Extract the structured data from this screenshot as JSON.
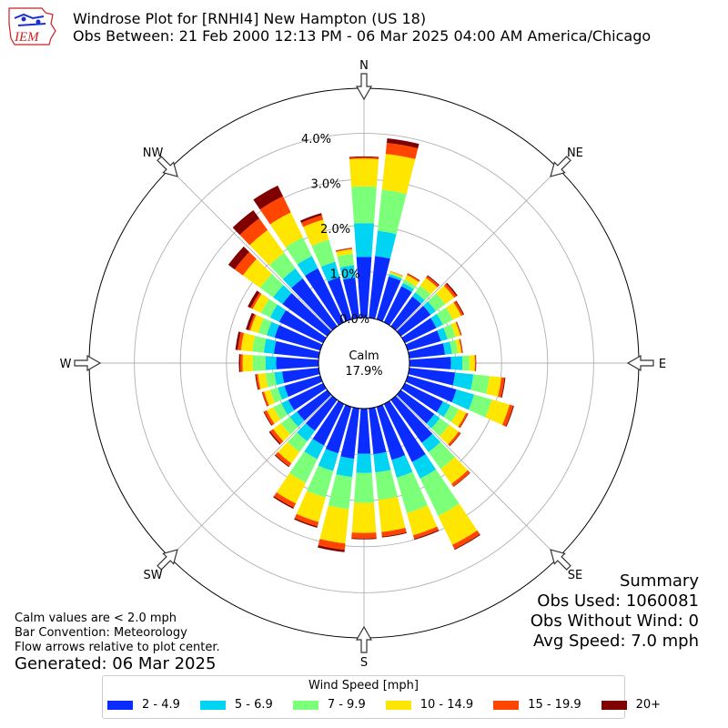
{
  "header": {
    "logo_text": "IEM",
    "title_line1": "Windrose Plot for [RNHI4] New Hampton (US 18)",
    "title_line2": "Obs Between: 21 Feb 2000 12:13 PM - 06 Mar 2025 04:00 AM America/Chicago"
  },
  "chart_data": {
    "type": "windrose",
    "directions_deg": [
      0,
      10,
      20,
      30,
      40,
      50,
      60,
      70,
      80,
      90,
      100,
      110,
      120,
      130,
      140,
      150,
      160,
      170,
      180,
      190,
      200,
      210,
      220,
      230,
      240,
      250,
      260,
      270,
      280,
      290,
      300,
      310,
      320,
      330,
      340,
      350
    ],
    "bins": [
      "2 - 4.9",
      "5 - 6.9",
      "7 - 9.9",
      "10 - 14.9",
      "15 - 19.9",
      "20+"
    ],
    "bin_colors": [
      "#0a2cff",
      "#00d4f2",
      "#7cff79",
      "#ffe600",
      "#ff4500",
      "#800000"
    ],
    "cumulative_percent": [
      [
        1.32,
        2.05,
        2.85,
        3.45,
        3.48,
        3.5
      ],
      [
        1.35,
        1.9,
        2.8,
        3.58,
        3.82,
        3.92
      ],
      [
        0.97,
        1.02,
        1.05,
        1.08,
        1.09,
        1.09
      ],
      [
        0.87,
        0.95,
        1.03,
        1.14,
        1.17,
        1.18
      ],
      [
        0.8,
        0.91,
        1.09,
        1.3,
        1.35,
        1.37
      ],
      [
        0.8,
        0.94,
        1.19,
        1.43,
        1.49,
        1.52
      ],
      [
        0.76,
        0.92,
        1.16,
        1.36,
        1.41,
        1.43
      ],
      [
        0.75,
        0.9,
        1.08,
        1.19,
        1.21,
        1.22
      ],
      [
        0.78,
        0.93,
        1.06,
        1.14,
        1.16,
        1.17
      ],
      [
        0.9,
        1.15,
        1.3,
        1.42,
        1.44,
        1.45
      ],
      [
        1.0,
        1.4,
        1.75,
        2.01,
        2.08,
        2.1
      ],
      [
        1.1,
        1.5,
        1.9,
        2.3,
        2.38,
        2.4
      ],
      [
        0.92,
        1.1,
        1.3,
        1.48,
        1.52,
        1.53
      ],
      [
        0.9,
        1.05,
        1.3,
        1.55,
        1.6,
        1.61
      ],
      [
        1.15,
        1.4,
        1.85,
        2.25,
        2.32,
        2.33
      ],
      [
        1.4,
        1.8,
        2.7,
        3.4,
        3.5,
        3.52
      ],
      [
        1.2,
        1.6,
        2.4,
        2.9,
        2.98,
        3.0
      ],
      [
        1.0,
        1.4,
        2.0,
        2.7,
        2.8,
        2.82
      ],
      [
        0.98,
        1.4,
        2.05,
        2.7,
        2.82,
        2.84
      ],
      [
        1.1,
        1.5,
        2.2,
        2.95,
        3.09,
        3.14
      ],
      [
        1.05,
        1.45,
        2.05,
        2.6,
        2.7,
        2.73
      ],
      [
        1.0,
        1.33,
        1.9,
        2.4,
        2.5,
        2.53
      ],
      [
        0.83,
        1.11,
        1.4,
        1.7,
        1.78,
        1.8
      ],
      [
        0.81,
        1.0,
        1.24,
        1.45,
        1.53,
        1.56
      ],
      [
        0.84,
        1.01,
        1.2,
        1.36,
        1.42,
        1.44
      ],
      [
        0.81,
        0.96,
        1.13,
        1.27,
        1.31,
        1.32
      ],
      [
        0.8,
        0.97,
        1.16,
        1.33,
        1.37,
        1.39
      ],
      [
        0.92,
        1.15,
        1.43,
        1.65,
        1.7,
        1.73
      ],
      [
        0.98,
        1.2,
        1.45,
        1.7,
        1.77,
        1.82
      ],
      [
        1.03,
        1.21,
        1.4,
        1.58,
        1.62,
        1.68
      ],
      [
        1.06,
        1.28,
        1.5,
        1.7,
        1.75,
        1.82
      ],
      [
        1.2,
        1.45,
        1.8,
        2.26,
        2.48,
        2.65
      ],
      [
        1.28,
        1.55,
        1.97,
        2.58,
        2.89,
        3.11
      ],
      [
        1.3,
        1.6,
        2.05,
        2.65,
        3.04,
        3.3
      ],
      [
        0.95,
        1.3,
        1.8,
        2.25,
        2.35,
        2.4
      ],
      [
        0.88,
        1.15,
        1.4,
        1.5,
        1.52,
        1.53
      ]
    ],
    "radial_ticks": [
      0,
      1,
      2,
      3,
      4
    ],
    "radial_tick_labels": [
      "0.0%",
      "1.0%",
      "2.0%",
      "3.0%",
      "4.0%"
    ],
    "direction_labels": [
      "N",
      "NE",
      "E",
      "SE",
      "S",
      "SW",
      "W",
      "NW"
    ],
    "calm_label": "Calm",
    "calm_value": "17.9%",
    "legend_title": "Wind Speed [mph]",
    "legend_position": "bottom"
  },
  "notes": {
    "line1": "Calm values are < 2.0 mph",
    "line2": "Bar Convention: Meteorology",
    "line3": "Flow arrows relative to plot center.",
    "generated": "Generated: 06 Mar 2025"
  },
  "summary": {
    "title": "Summary",
    "obs_used": "Obs Used: 1060081",
    "obs_without_wind": "Obs Without Wind: 0",
    "avg_speed": "Avg Speed: 7.0 mph"
  }
}
